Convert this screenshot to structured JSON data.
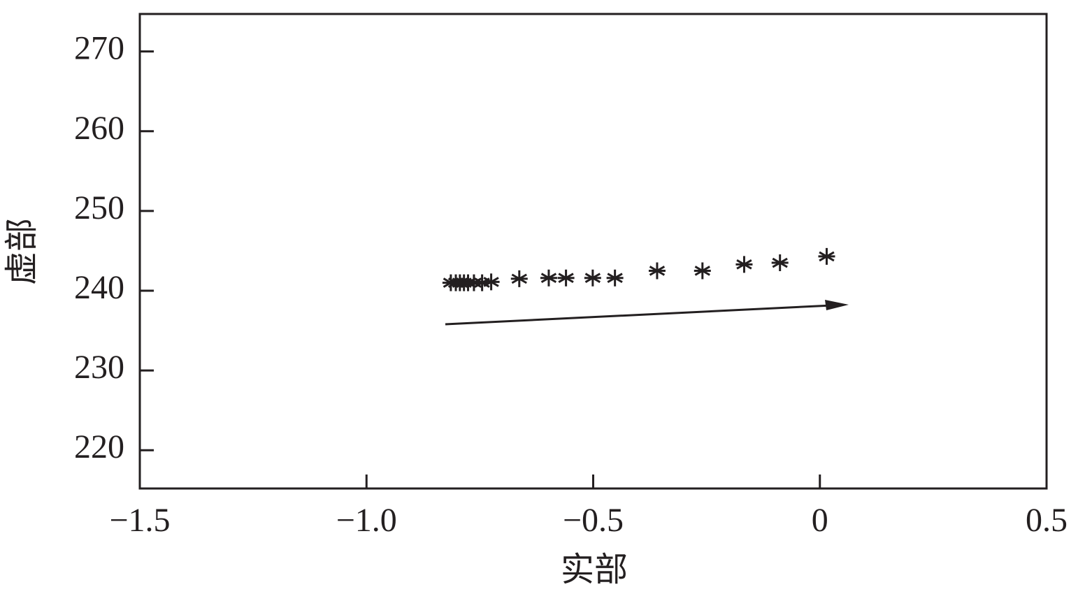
{
  "chart_data": {
    "type": "scatter",
    "x_label": "实部",
    "y_label": "虚部",
    "x": [
      -0.814,
      -0.803,
      -0.794,
      -0.785,
      -0.776,
      -0.763,
      -0.745,
      -0.725,
      -0.663,
      -0.598,
      -0.56,
      -0.501,
      -0.452,
      -0.359,
      -0.259,
      -0.167,
      -0.088,
      0.015
    ],
    "y": [
      241.0,
      241.0,
      241.0,
      241.0,
      241.0,
      241.0,
      241.0,
      241.1,
      241.5,
      241.6,
      241.6,
      241.6,
      241.6,
      242.5,
      242.5,
      243.3,
      243.5,
      244.3
    ],
    "color": "#231f20",
    "marker": "asterisk",
    "xlim": [
      -1.5,
      0.5
    ],
    "xticks": [
      {
        "value": -1.5,
        "label": "−1.5"
      },
      {
        "value": -1.0,
        "label": "−1.0"
      },
      {
        "value": -0.5,
        "label": "−0.5"
      },
      0,
      0.5
    ],
    "ylim": [
      215.2,
      274.7
    ],
    "yticks": [
      220,
      230,
      240,
      250,
      260,
      270
    ],
    "grid": false
  }
}
